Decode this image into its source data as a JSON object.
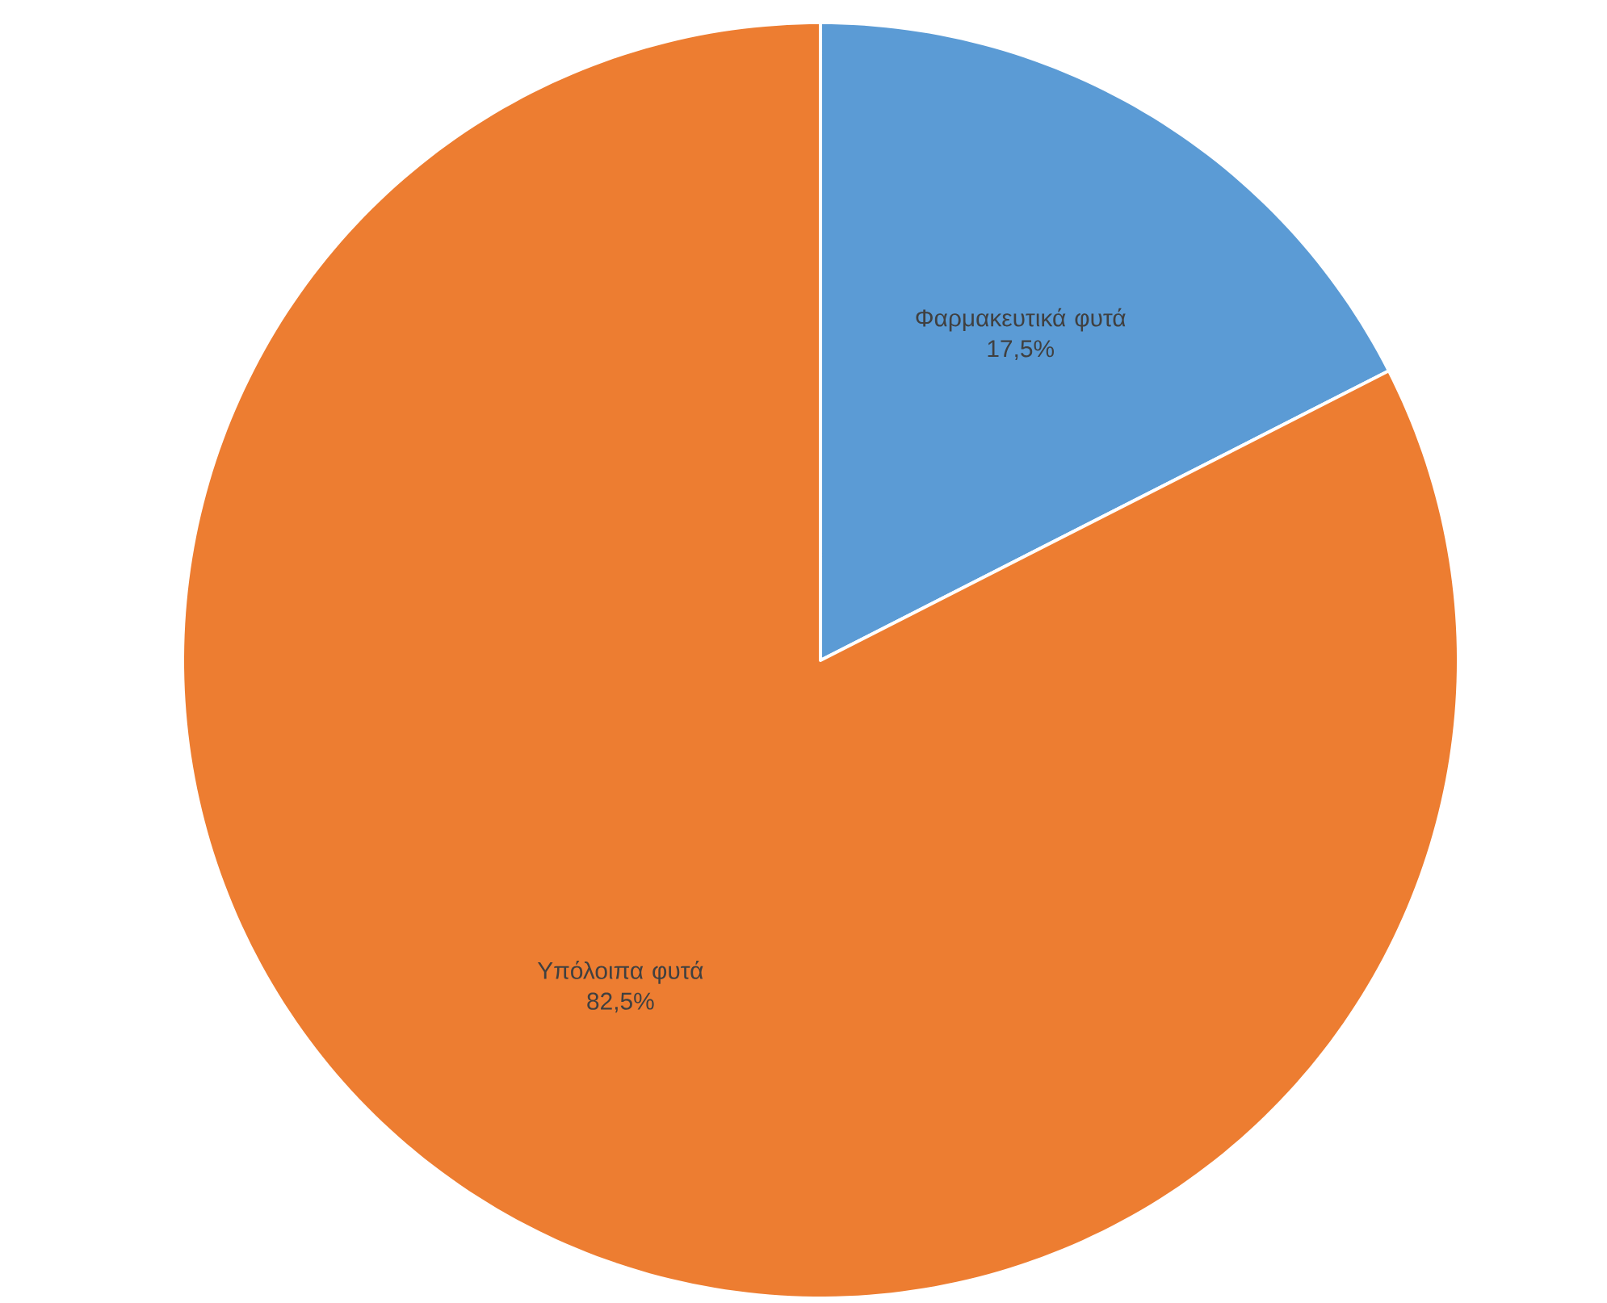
{
  "chart_data": {
    "type": "pie",
    "categories": [
      "Φαρμακευτικά φυτά",
      "Υπόλοιπα φυτά"
    ],
    "values": [
      17.5,
      82.5
    ],
    "colors": [
      "#5b9bd5",
      "#ed7d31"
    ],
    "value_labels": [
      "17,5%",
      "82,5%"
    ]
  }
}
